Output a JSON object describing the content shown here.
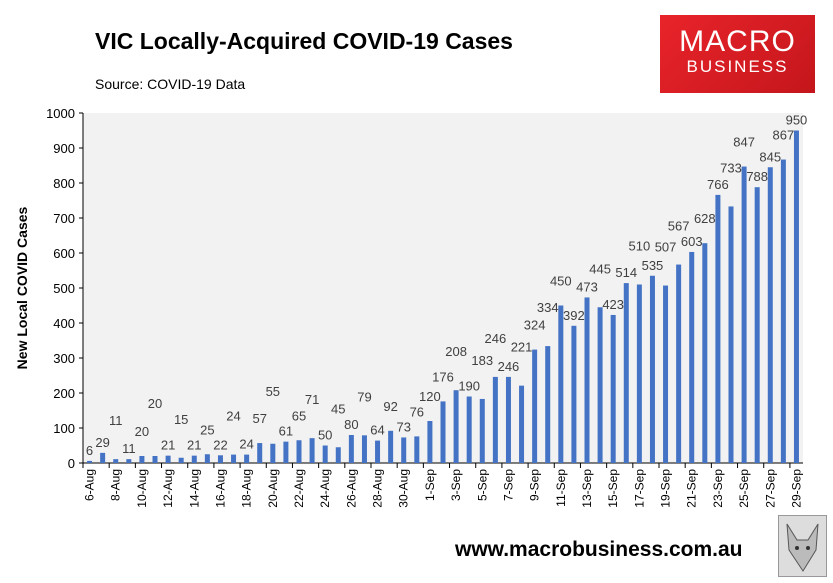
{
  "header": {
    "title": "VIC Locally-Acquired COVID-19 Cases",
    "source": "Source: COVID-19 Data"
  },
  "logo": {
    "line1": "MACRO",
    "line2": "BUSINESS"
  },
  "footer": {
    "url": "www.macrobusiness.com.au"
  },
  "colors": {
    "bar": "#4472c4",
    "plot_bg": "#f2f2f2",
    "logo": "#e01e25"
  },
  "chart_data": {
    "type": "bar",
    "title": "VIC Locally-Acquired COVID-19 Cases",
    "xlabel": "",
    "ylabel": "New Local COVID Cases",
    "ylim": [
      0,
      1000
    ],
    "yticks": [
      0,
      100,
      200,
      300,
      400,
      500,
      600,
      700,
      800,
      900,
      1000
    ],
    "grid": false,
    "categories": [
      "6-Aug",
      "7-Aug",
      "8-Aug",
      "9-Aug",
      "10-Aug",
      "11-Aug",
      "12-Aug",
      "13-Aug",
      "14-Aug",
      "15-Aug",
      "16-Aug",
      "17-Aug",
      "18-Aug",
      "19-Aug",
      "20-Aug",
      "21-Aug",
      "22-Aug",
      "23-Aug",
      "24-Aug",
      "25-Aug",
      "26-Aug",
      "27-Aug",
      "28-Aug",
      "29-Aug",
      "30-Aug",
      "31-Aug",
      "1-Sep",
      "2-Sep",
      "3-Sep",
      "4-Sep",
      "5-Sep",
      "6-Sep",
      "7-Sep",
      "8-Sep",
      "9-Sep",
      "10-Sep",
      "11-Sep",
      "12-Sep",
      "13-Sep",
      "14-Sep",
      "15-Sep",
      "16-Sep",
      "17-Sep",
      "18-Sep",
      "19-Sep",
      "20-Sep",
      "21-Sep",
      "22-Sep",
      "23-Sep",
      "24-Sep",
      "25-Sep",
      "26-Sep",
      "27-Sep",
      "28-Sep",
      "29-Sep"
    ],
    "values": [
      6,
      29,
      11,
      11,
      20,
      20,
      21,
      15,
      21,
      25,
      22,
      24,
      24,
      57,
      55,
      61,
      65,
      71,
      50,
      45,
      80,
      79,
      64,
      92,
      73,
      76,
      120,
      176,
      208,
      190,
      183,
      246,
      246,
      221,
      324,
      334,
      450,
      392,
      473,
      445,
      423,
      514,
      510,
      535,
      507,
      567,
      603,
      628,
      766,
      733,
      847,
      788,
      845,
      867,
      950
    ]
  }
}
